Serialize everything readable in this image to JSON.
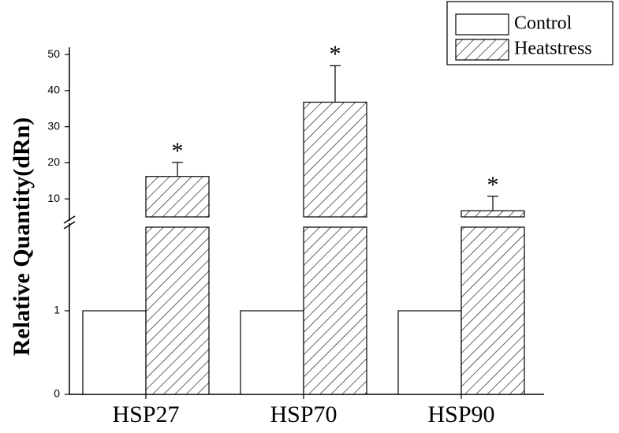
{
  "chart_data": {
    "type": "bar",
    "y_label": "Relative Quantity(dRn)",
    "categories": [
      "HSP27",
      "HSP70",
      "HSP90"
    ],
    "series": [
      {
        "name": "Control",
        "color": "#ffffff",
        "pattern": "none",
        "values": [
          1,
          1,
          1
        ]
      },
      {
        "name": "Heatstress",
        "color": "#ffffff",
        "pattern": "hatch",
        "values": [
          16.2,
          36.8,
          6.7
        ],
        "errors": [
          3.9,
          10.1,
          4.0
        ],
        "annotations": [
          "*",
          "*",
          "*"
        ]
      }
    ],
    "y_segments": [
      {
        "ylim": [
          0,
          2
        ],
        "yticks": [
          0,
          1
        ]
      },
      {
        "ylim": [
          5,
          52
        ],
        "yticks": [
          10,
          20,
          30,
          40,
          50
        ]
      }
    ],
    "legend": "top-right"
  }
}
